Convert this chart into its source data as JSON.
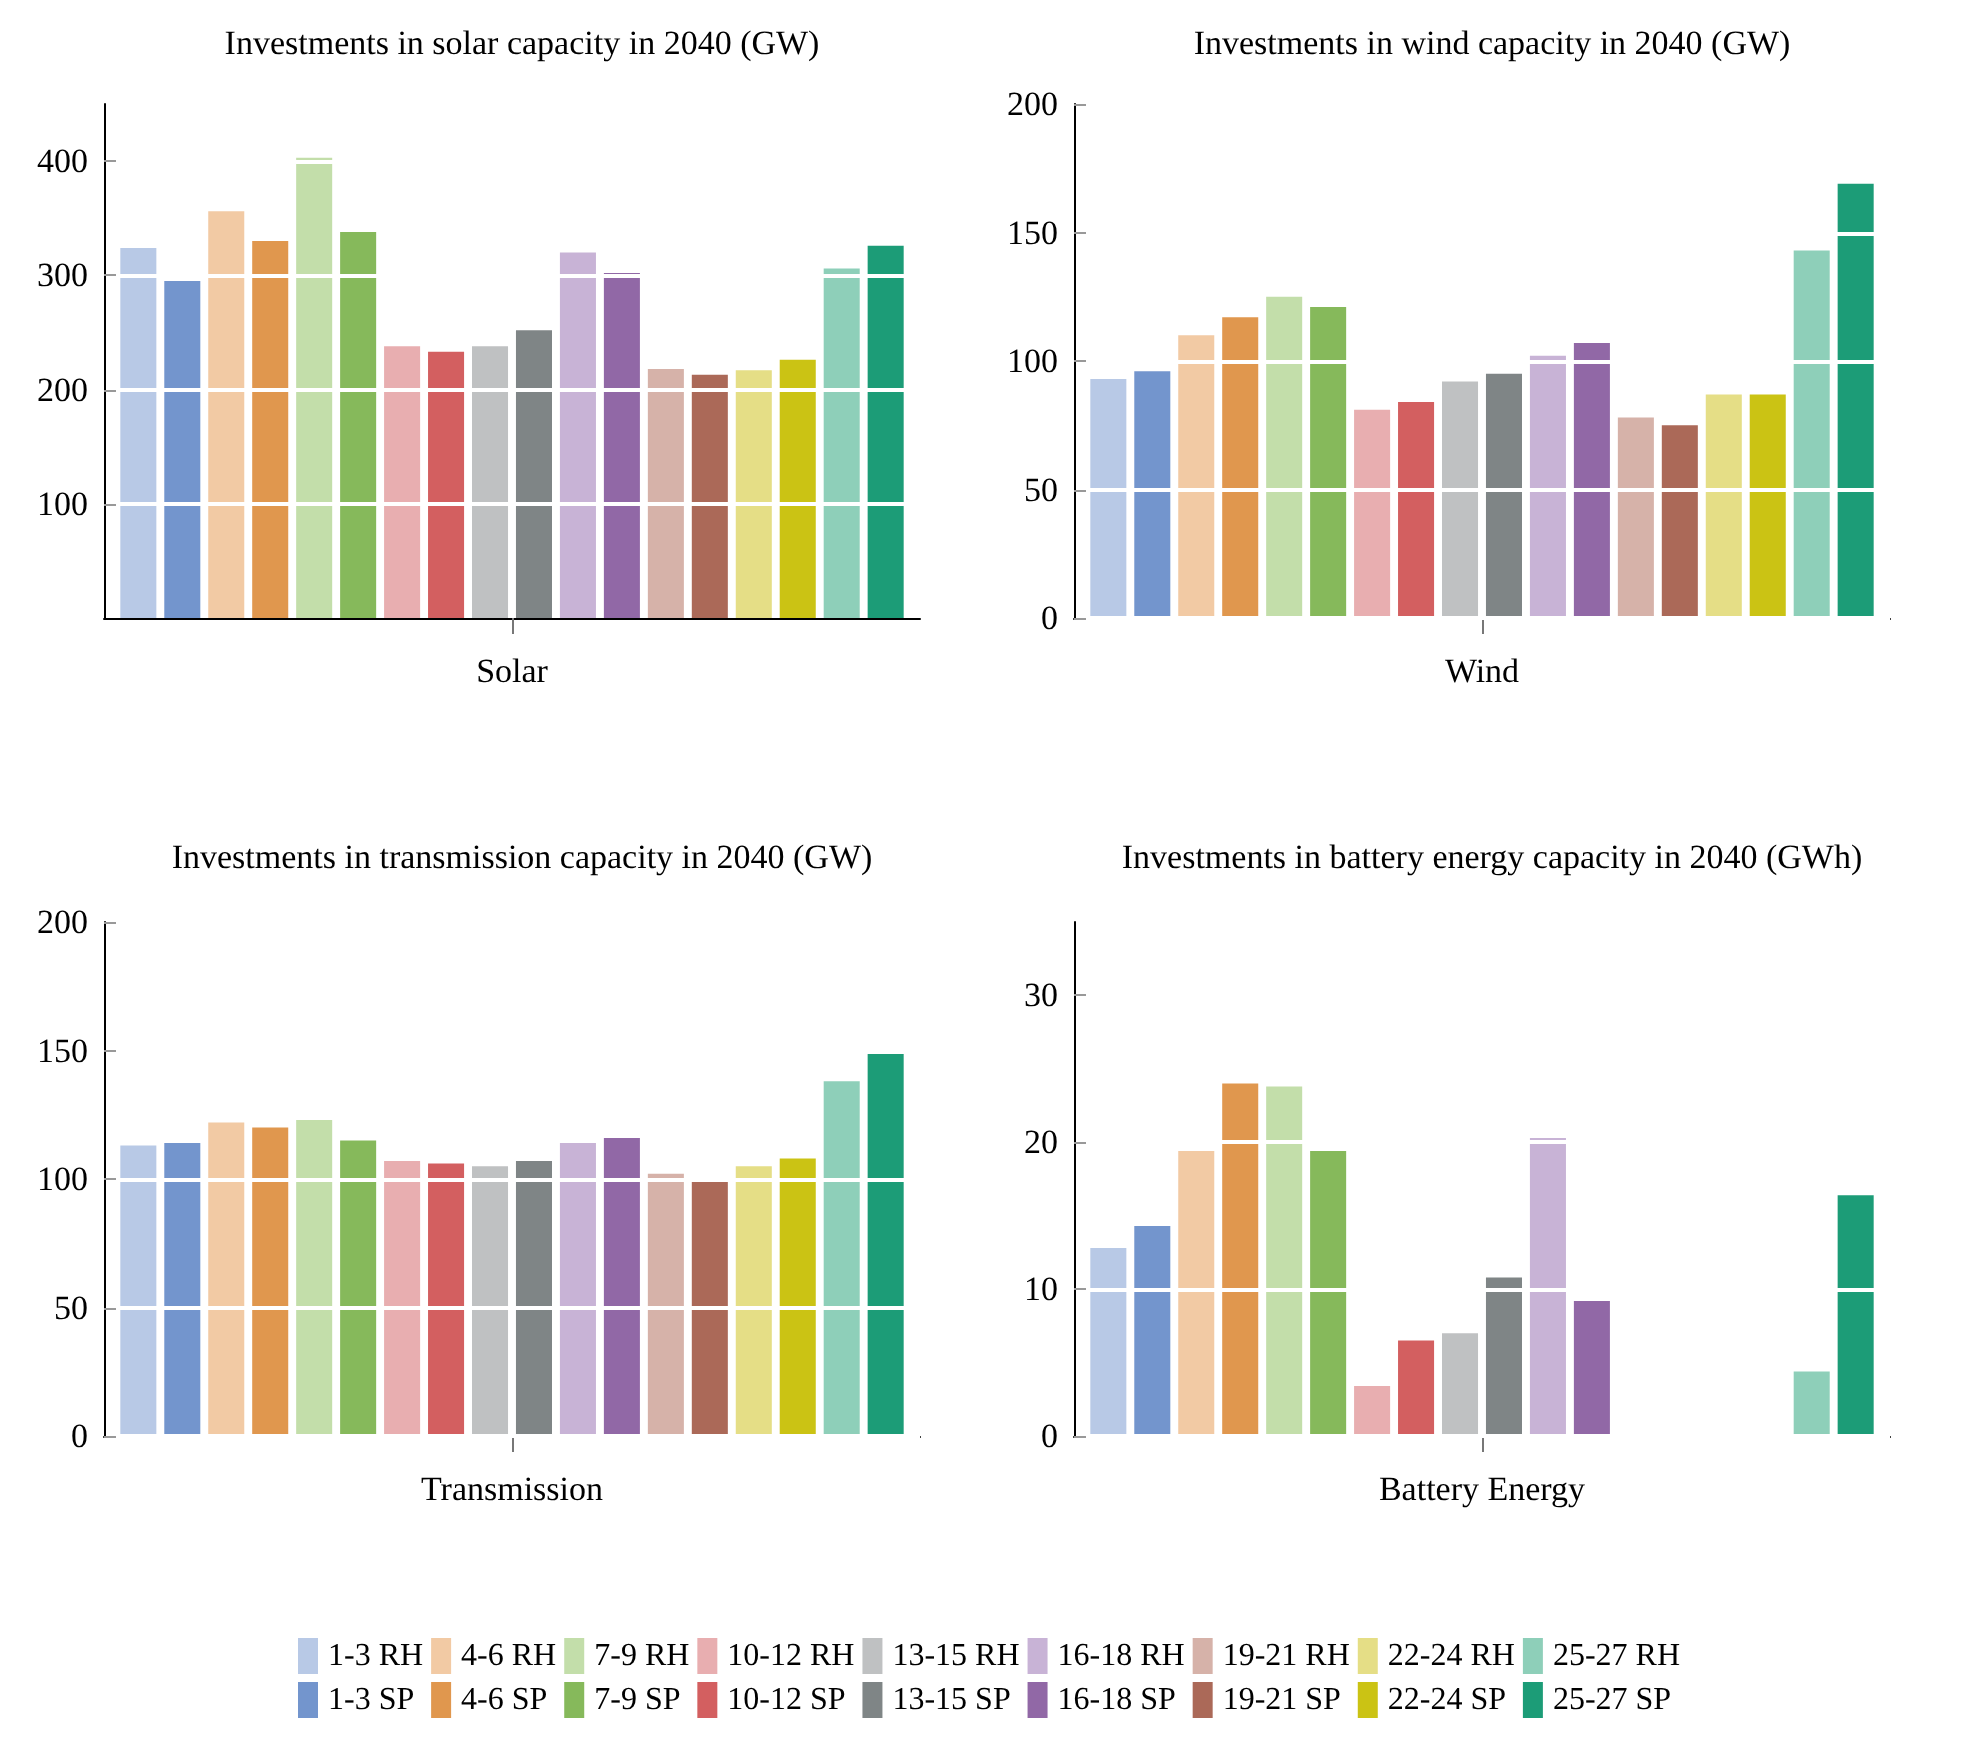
{
  "chart_data": [
    {
      "type": "bar",
      "title": "Investments in solar capacity in 2040 (GW)",
      "categories": [
        "Solar"
      ],
      "ylim": [
        0,
        450
      ],
      "yticks": [
        100,
        200,
        300,
        400
      ],
      "grid": "y",
      "legend": "bottom",
      "series": [
        {
          "name": "1-3 RH",
          "color": "#b8c9e6",
          "values": [
            324
          ]
        },
        {
          "name": "1-3 SP",
          "color": "#7395cd",
          "values": [
            295
          ]
        },
        {
          "name": "4-6 RH",
          "color": "#f2caa4",
          "values": [
            356
          ]
        },
        {
          "name": "4-6 SP",
          "color": "#e0974e",
          "values": [
            330
          ]
        },
        {
          "name": "7-9 RH",
          "color": "#c3deaa",
          "values": [
            403
          ]
        },
        {
          "name": "7-9 SP",
          "color": "#86b95b",
          "values": [
            338
          ]
        },
        {
          "name": "10-12 RH",
          "color": "#e8aeb0",
          "values": [
            238
          ]
        },
        {
          "name": "10-12 SP",
          "color": "#d35f60",
          "values": [
            233
          ]
        },
        {
          "name": "13-15 RH",
          "color": "#bfc1c2",
          "values": [
            238
          ]
        },
        {
          "name": "13-15 SP",
          "color": "#7f8586",
          "values": [
            252
          ]
        },
        {
          "name": "16-18 RH",
          "color": "#c8b3d6",
          "values": [
            320
          ]
        },
        {
          "name": "16-18 SP",
          "color": "#9168a6",
          "values": [
            302
          ]
        },
        {
          "name": "19-21 RH",
          "color": "#d6b2a9",
          "values": [
            218
          ]
        },
        {
          "name": "19-21 SP",
          "color": "#ab6958",
          "values": [
            213
          ]
        },
        {
          "name": "22-24 RH",
          "color": "#e5de86",
          "values": [
            217
          ]
        },
        {
          "name": "22-24 SP",
          "color": "#cbc314",
          "values": [
            226
          ]
        },
        {
          "name": "25-27 RH",
          "color": "#8ecfb9",
          "values": [
            306
          ]
        },
        {
          "name": "25-27 SP",
          "color": "#1c9c77",
          "values": [
            326
          ]
        }
      ]
    },
    {
      "type": "bar",
      "title": "Investments in wind capacity in 2040 (GW)",
      "categories": [
        "Wind"
      ],
      "ylim": [
        0,
        200
      ],
      "yticks": [
        0,
        50,
        100,
        150,
        200
      ],
      "grid": "y",
      "series": [
        {
          "color": "#b8c9e6",
          "values": [
            93
          ]
        },
        {
          "color": "#7395cd",
          "values": [
            96
          ]
        },
        {
          "color": "#f2caa4",
          "values": [
            110
          ]
        },
        {
          "color": "#e0974e",
          "values": [
            117
          ]
        },
        {
          "color": "#c3deaa",
          "values": [
            125
          ]
        },
        {
          "color": "#86b95b",
          "values": [
            121
          ]
        },
        {
          "color": "#e8aeb0",
          "values": [
            81
          ]
        },
        {
          "color": "#d35f60",
          "values": [
            84
          ]
        },
        {
          "color": "#bfc1c2",
          "values": [
            92
          ]
        },
        {
          "color": "#7f8586",
          "values": [
            95
          ]
        },
        {
          "color": "#c8b3d6",
          "values": [
            102
          ]
        },
        {
          "color": "#9168a6",
          "values": [
            107
          ]
        },
        {
          "color": "#d6b2a9",
          "values": [
            78
          ]
        },
        {
          "color": "#ab6958",
          "values": [
            75
          ]
        },
        {
          "color": "#e5de86",
          "values": [
            87
          ]
        },
        {
          "color": "#cbc314",
          "values": [
            87
          ]
        },
        {
          "color": "#8ecfb9",
          "values": [
            143
          ]
        },
        {
          "color": "#1c9c77",
          "values": [
            169
          ]
        }
      ]
    },
    {
      "type": "bar",
      "title": "Investments in transmission capacity in 2040 (GW)",
      "categories": [
        "Transmission"
      ],
      "ylim": [
        0,
        200
      ],
      "yticks": [
        0,
        50,
        100,
        150,
        200
      ],
      "grid": "y",
      "series": [
        {
          "color": "#b8c9e6",
          "values": [
            113
          ]
        },
        {
          "color": "#7395cd",
          "values": [
            114
          ]
        },
        {
          "color": "#f2caa4",
          "values": [
            122
          ]
        },
        {
          "color": "#e0974e",
          "values": [
            120
          ]
        },
        {
          "color": "#c3deaa",
          "values": [
            123
          ]
        },
        {
          "color": "#86b95b",
          "values": [
            115
          ]
        },
        {
          "color": "#e8aeb0",
          "values": [
            107
          ]
        },
        {
          "color": "#d35f60",
          "values": [
            106
          ]
        },
        {
          "color": "#bfc1c2",
          "values": [
            105
          ]
        },
        {
          "color": "#7f8586",
          "values": [
            107
          ]
        },
        {
          "color": "#c8b3d6",
          "values": [
            114
          ]
        },
        {
          "color": "#9168a6",
          "values": [
            116
          ]
        },
        {
          "color": "#d6b2a9",
          "values": [
            102
          ]
        },
        {
          "color": "#ab6958",
          "values": [
            100
          ]
        },
        {
          "color": "#e5de86",
          "values": [
            105
          ]
        },
        {
          "color": "#cbc314",
          "values": [
            108
          ]
        },
        {
          "color": "#8ecfb9",
          "values": [
            138
          ]
        },
        {
          "color": "#1c9c77",
          "values": [
            150
          ]
        }
      ]
    },
    {
      "type": "bar",
      "title": "Investments in battery energy capacity in 2040 (GWh)",
      "categories": [
        "Battery Energy"
      ],
      "ylim": [
        0,
        35
      ],
      "yticks": [
        0,
        10,
        20,
        30
      ],
      "grid": "y",
      "series": [
        {
          "color": "#b8c9e6",
          "values": [
            12.8
          ]
        },
        {
          "color": "#7395cd",
          "values": [
            14.3
          ]
        },
        {
          "color": "#f2caa4",
          "values": [
            19.4
          ]
        },
        {
          "color": "#e0974e",
          "values": [
            24
          ]
        },
        {
          "color": "#c3deaa",
          "values": [
            23.8
          ]
        },
        {
          "color": "#86b95b",
          "values": [
            19.4
          ]
        },
        {
          "color": "#e8aeb0",
          "values": [
            3.4
          ]
        },
        {
          "color": "#d35f60",
          "values": [
            6.5
          ]
        },
        {
          "color": "#bfc1c2",
          "values": [
            7
          ]
        },
        {
          "color": "#7f8586",
          "values": [
            10.8
          ]
        },
        {
          "color": "#c8b3d6",
          "values": [
            20.3
          ]
        },
        {
          "color": "#9168a6",
          "values": [
            9.2
          ]
        },
        {
          "color": "#d6b2a9",
          "values": [
            0
          ]
        },
        {
          "color": "#ab6958",
          "values": [
            0
          ]
        },
        {
          "color": "#e5de86",
          "values": [
            0
          ]
        },
        {
          "color": "#cbc314",
          "values": [
            0
          ]
        },
        {
          "color": "#8ecfb9",
          "values": [
            4.4
          ]
        },
        {
          "color": "#1c9c77",
          "values": [
            16.4
          ]
        }
      ]
    }
  ]
}
